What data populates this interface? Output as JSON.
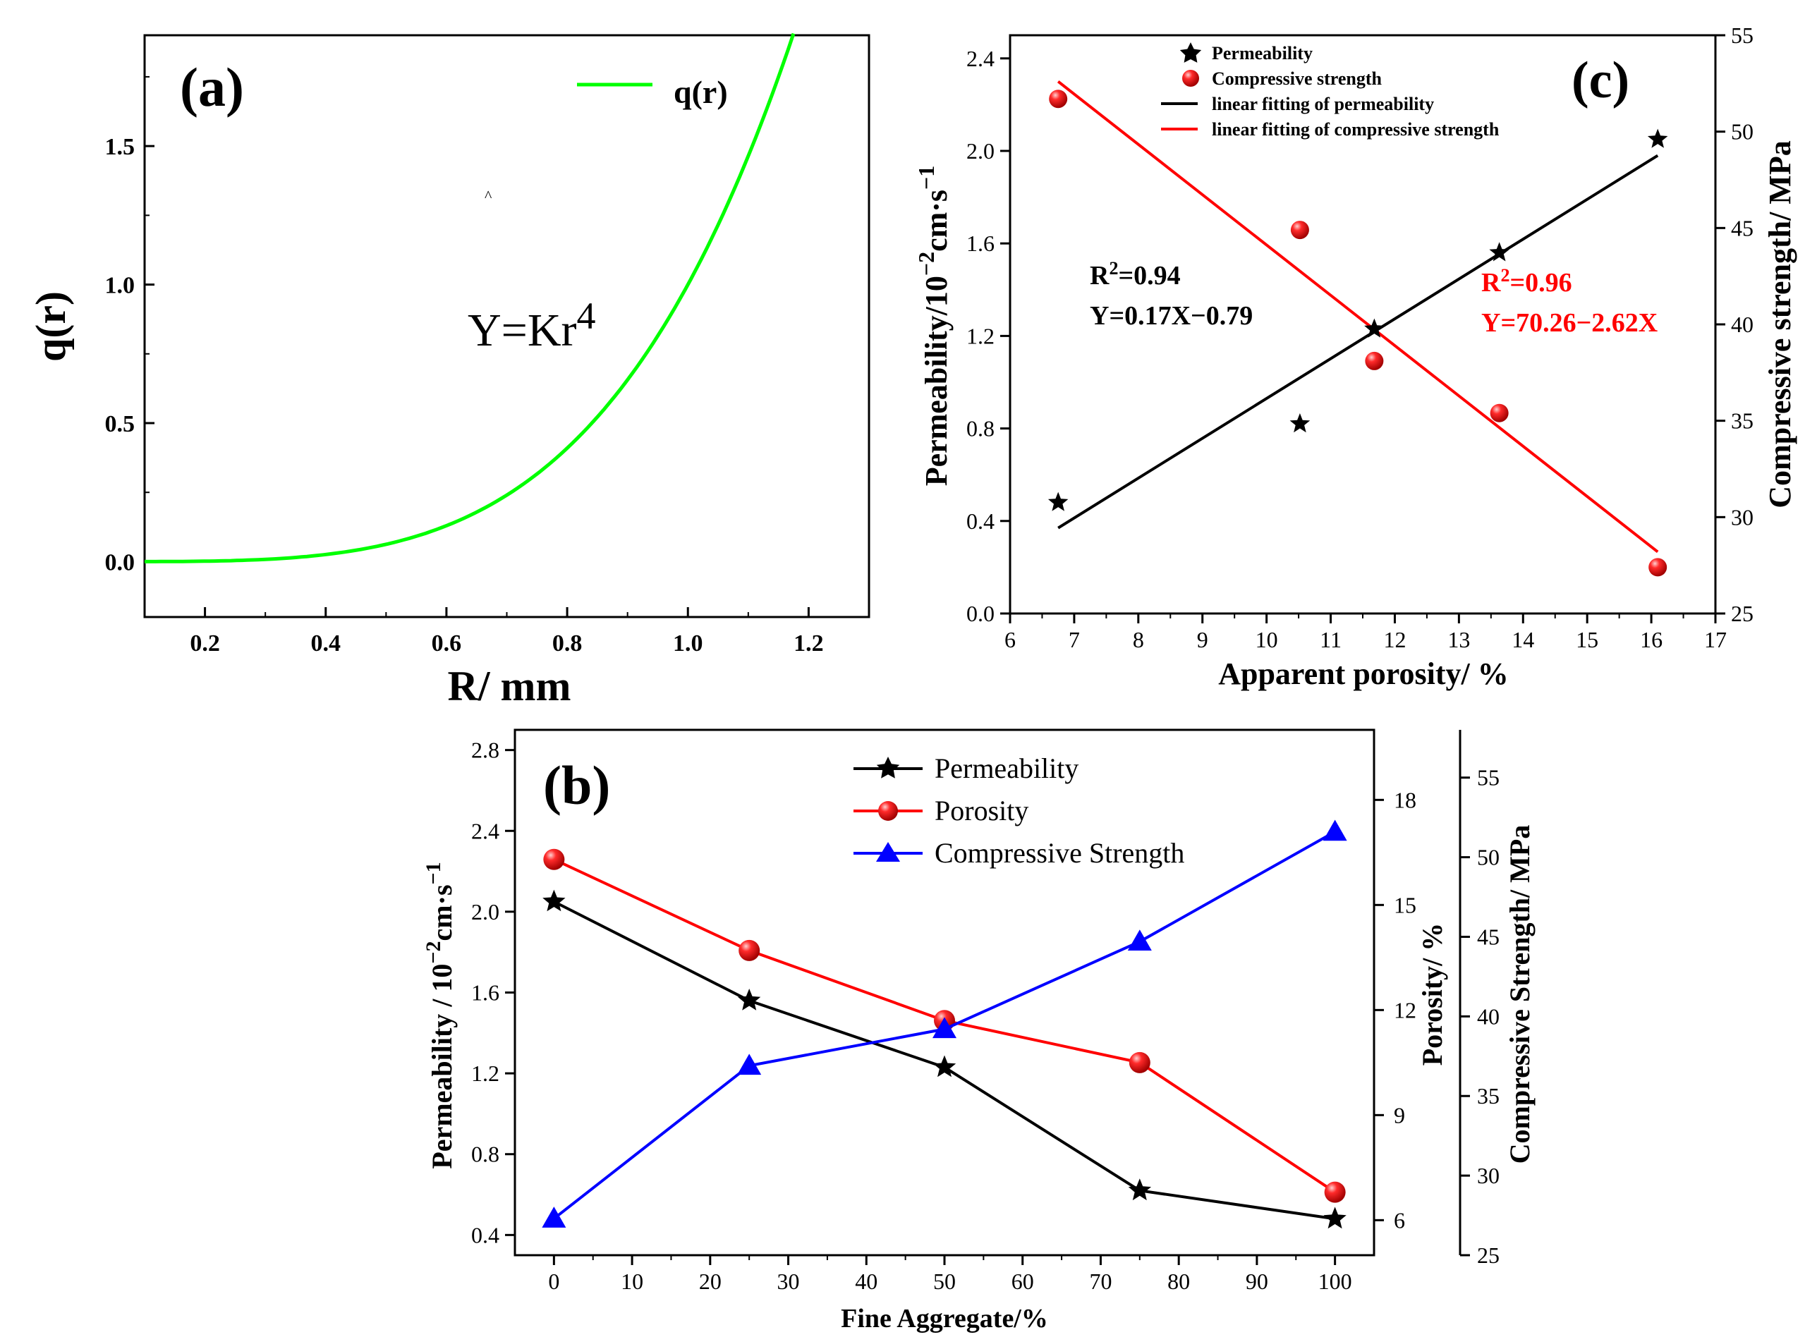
{
  "chart_data": [
    {
      "panel_label": "(a)",
      "type": "line",
      "xlabel": "R/ mm",
      "ylabel": "q(r)",
      "xlim": [
        0.1,
        1.3
      ],
      "ylim": [
        -0.2,
        1.9
      ],
      "xticks": [
        0.2,
        0.4,
        0.6,
        0.8,
        1.0,
        1.2
      ],
      "yticks": [
        0.0,
        0.5,
        1.0,
        1.5
      ],
      "annotation": {
        "base": "Y=Kr",
        "sup": "4"
      },
      "caret": "^",
      "legend_position": "top-right",
      "series": [
        {
          "name": "q(r)",
          "color": "#00ff00",
          "function": "K*r^4",
          "K": 1.0,
          "x_max": 1.175
        }
      ]
    },
    {
      "panel_label": "(c)",
      "type": "scatter",
      "xlabel": "Apparent porosity/ %",
      "ylabel_left": {
        "main": "Permeability/10",
        "sup": "−2",
        "mid": "cm·s",
        "sup2": "−1"
      },
      "ylabel_right": "Compressive strength/ MPa",
      "xlim": [
        6,
        17
      ],
      "ylim_left": [
        0,
        2.5
      ],
      "ylim_right": [
        25,
        55
      ],
      "xticks": [
        6,
        7,
        8,
        9,
        10,
        11,
        12,
        13,
        14,
        15,
        16,
        17
      ],
      "yticks_left": [
        "0.0",
        "0.4",
        "0.8",
        "1.2",
        "1.6",
        "2.0",
        "2.4"
      ],
      "yticks_right": [
        "25",
        "30",
        "35",
        "40",
        "45",
        "50",
        "55"
      ],
      "legend_position": "top",
      "legend": [
        "Permeability",
        "Compressive strength",
        "linear fitting of permeability",
        "linear fitting of compressive strength"
      ],
      "series": [
        {
          "name": "Permeability",
          "axis": "left",
          "marker": "star",
          "color": "#000000",
          "x": [
            6.75,
            10.52,
            11.68,
            13.63,
            16.1
          ],
          "y": [
            0.48,
            0.82,
            1.23,
            1.56,
            2.05
          ]
        },
        {
          "name": "Compressive strength",
          "axis": "right",
          "marker": "ball",
          "color": "#ff0000",
          "x": [
            6.75,
            10.52,
            11.68,
            13.63,
            16.1
          ],
          "y": [
            51.7,
            44.9,
            38.1,
            35.4,
            27.4
          ]
        }
      ],
      "fits": [
        {
          "name": "linear fitting of permeability",
          "axis": "left",
          "color": "#000000",
          "x": [
            6.75,
            16.1
          ],
          "y": [
            0.37,
            1.98
          ]
        },
        {
          "name": "linear fitting of compressive strength",
          "axis": "right",
          "color": "#ff0000",
          "x": [
            6.75,
            16.1
          ],
          "y": [
            52.6,
            28.2
          ]
        }
      ],
      "annotations": [
        {
          "r2_base": "R",
          "r2_sup": "2",
          "r2_tail": "=0.94",
          "equation": "Y=0.17X−0.79",
          "color": "#000000"
        },
        {
          "r2_base": "R",
          "r2_sup": "2",
          "r2_tail": "=0.96",
          "equation": "Y=70.26−2.62X",
          "color": "#ff0000"
        }
      ]
    },
    {
      "panel_label": "(b)",
      "type": "line",
      "xlabel": "Fine Aggregate/%",
      "ylabel_left": {
        "main": "Permeability / 10",
        "sup": "−2",
        "mid": "cm·s",
        "sup2": "−1"
      },
      "ylabel_right1": "Porosity/ %",
      "ylabel_right2": "Compressive Strength/ MPa",
      "xlim": [
        -5,
        105
      ],
      "ylim_left": [
        0.3,
        2.9
      ],
      "ylim_right1": [
        5,
        20
      ],
      "ylim_right2": [
        25,
        58
      ],
      "xticks": [
        "0",
        "10",
        "20",
        "30",
        "40",
        "50",
        "60",
        "70",
        "80",
        "90",
        "100"
      ],
      "yticks_left": [
        "0.4",
        "0.8",
        "1.2",
        "1.6",
        "2.0",
        "2.4",
        "2.8"
      ],
      "yticks_right1": [
        "6",
        "9",
        "12",
        "15",
        "18"
      ],
      "yticks_right2": [
        "25",
        "30",
        "35",
        "40",
        "45",
        "50",
        "55"
      ],
      "legend_position": "top-right",
      "categories": [
        0,
        25,
        50,
        75,
        100
      ],
      "series": [
        {
          "name": "Permeability",
          "axis": "left",
          "marker": "star",
          "color": "#000000",
          "values": [
            2.05,
            1.56,
            1.23,
            0.62,
            0.48
          ]
        },
        {
          "name": "Porosity",
          "axis": "right1",
          "marker": "ball",
          "color": "#ff0000",
          "values": [
            16.3,
            13.7,
            11.7,
            10.5,
            6.8
          ]
        },
        {
          "name": "Compressive Strength",
          "axis": "right2",
          "marker": "triangle",
          "color": "#0000ff",
          "values": [
            27.3,
            36.9,
            39.2,
            44.7,
            51.6
          ]
        }
      ]
    }
  ]
}
